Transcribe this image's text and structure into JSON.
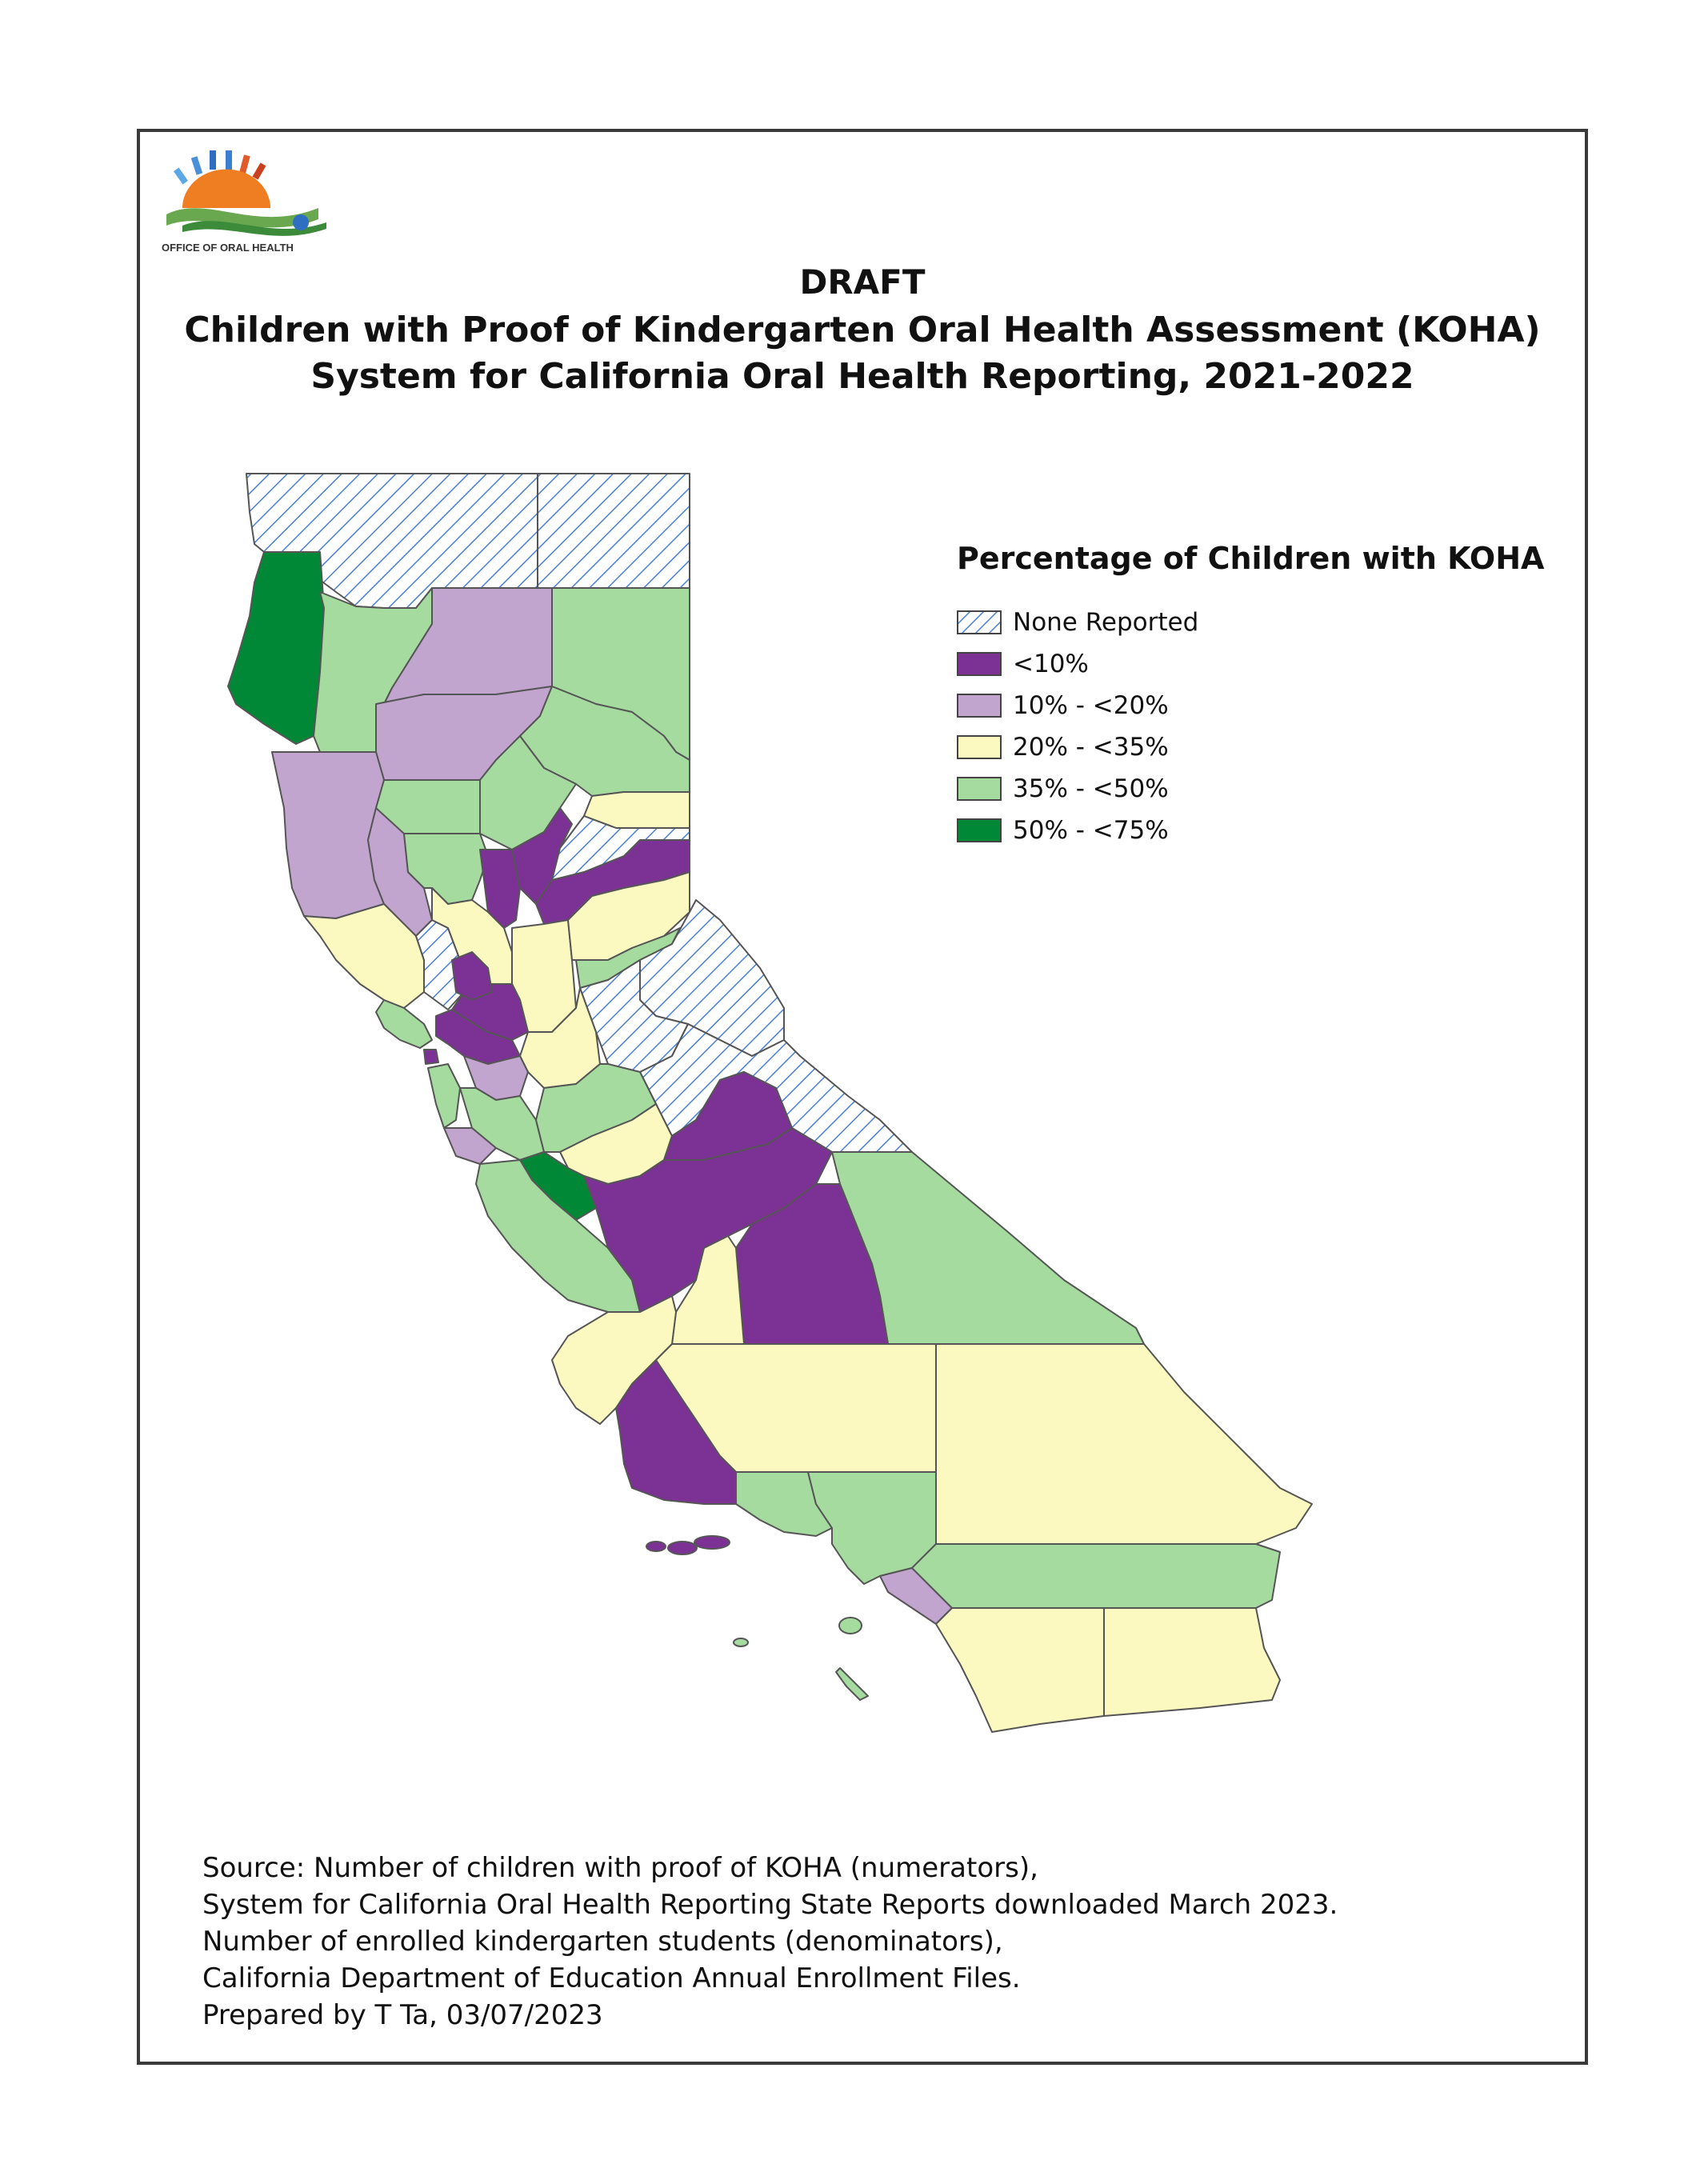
{
  "header": {
    "logo_text": "OFFICE OF ORAL HEALTH",
    "draft_label": "DRAFT",
    "title": "Children with Proof of Kindergarten Oral Health Assessment (KOHA)",
    "subtitle": "System for California Oral Health Reporting, 2021-2022"
  },
  "legend": {
    "title": "Percentage of Children with KOHA",
    "items": [
      {
        "label": "None Reported",
        "fill": "hatch"
      },
      {
        "label": "<10%",
        "color": "#7b3294"
      },
      {
        "label": "10% - <20%",
        "color": "#c2a5cf"
      },
      {
        "label": "20% - <35%",
        "color": "#fbf8c0"
      },
      {
        "label": "35% - <50%",
        "color": "#a6dba0"
      },
      {
        "label": "50% - <75%",
        "color": "#008837"
      }
    ]
  },
  "colors": {
    "none": "hatch",
    "lt10": "#7b3294",
    "r10_20": "#c2a5cf",
    "r20_35": "#fbf8c0",
    "r35_50": "#a6dba0",
    "r50_75": "#008837",
    "border": "#555555",
    "hatch_line": "#4a7fd0"
  },
  "source": {
    "lines": [
      "Source: Number of children with proof of KOHA (numerators),",
      "System for California Oral Health Reporting State Reports downloaded March 2023.",
      "Number of enrolled kindergarten students (denominators),",
      "California Department of Education Annual Enrollment Files.",
      "Prepared by T Ta, 03/07/2023"
    ]
  }
}
